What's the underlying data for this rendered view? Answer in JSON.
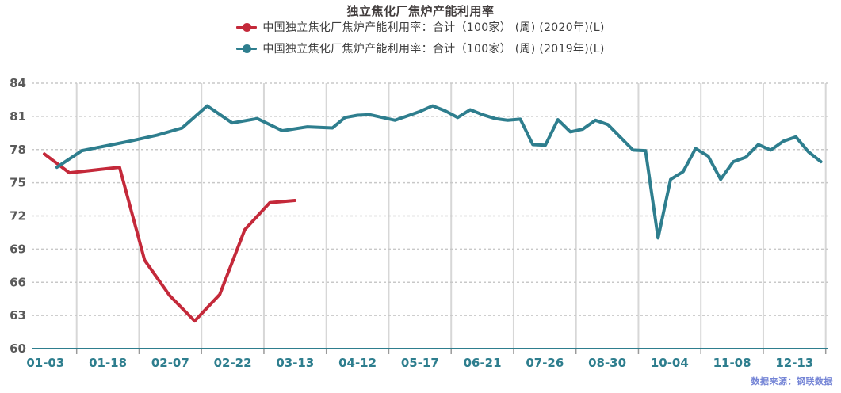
{
  "chart": {
    "title": "独立焦化厂焦炉产能利用率",
    "source_note": "数据来源：钢联数据",
    "legend": [
      {
        "label": "中国独立焦化厂焦炉产能利用率：合计（100家） (周) (2020年)(L)",
        "color": "#c4293a"
      },
      {
        "label": "中国独立焦化厂焦炉产能利用率：合计（100家） (周) (2019年)(L)",
        "color": "#2e7e8e"
      }
    ]
  },
  "chart_data": {
    "type": "line",
    "title": "独立焦化厂焦炉产能利用率",
    "ylim": [
      60,
      84
    ],
    "y_ticks": [
      60,
      63,
      66,
      69,
      72,
      75,
      78,
      81,
      84
    ],
    "x_labels": [
      "01-03",
      "01-18",
      "02-07",
      "02-22",
      "03-13",
      "04-12",
      "05-17",
      "06-21",
      "07-26",
      "08-30",
      "10-04",
      "11-08",
      "12-13"
    ],
    "grid": true,
    "legend_position": "top",
    "axis_color": "#2e7e8e",
    "x_label_color": "#2e7e8e",
    "y_label_color": "#5a5a5a",
    "series": [
      {
        "name": "中国独立焦化厂焦炉产能利用率：合计（100家） (周) (2020年)(L)",
        "color": "#c4293a",
        "points": [
          [
            56.0,
            77.6
          ],
          [
            87.6,
            75.9
          ],
          [
            119.2,
            76.15
          ],
          [
            150.8,
            76.4
          ],
          [
            182.4,
            68.0
          ],
          [
            214.0,
            64.8
          ],
          [
            245.6,
            62.5
          ],
          [
            277.2,
            64.9
          ],
          [
            308.8,
            70.75
          ],
          [
            340.4,
            73.2
          ],
          [
            372.0,
            73.4
          ]
        ]
      },
      {
        "name": "中国独立焦化厂焦炉产能利用率：合计（100家） (周) (2019年)(L)",
        "color": "#2e7e8e",
        "points": [
          [
            71.8,
            76.4
          ],
          [
            103.4,
            77.9
          ],
          [
            135.0,
            78.35
          ],
          [
            166.6,
            78.8
          ],
          [
            198.2,
            79.3
          ],
          [
            229.8,
            79.95
          ],
          [
            261.4,
            81.95
          ],
          [
            293.0,
            80.4
          ],
          [
            324.6,
            80.8
          ],
          [
            356.2,
            79.7
          ],
          [
            387.8,
            80.05
          ],
          [
            419.4,
            79.95
          ],
          [
            435.2,
            80.9
          ],
          [
            451.0,
            81.1
          ],
          [
            466.8,
            81.15
          ],
          [
            482.6,
            80.9
          ],
          [
            498.4,
            80.65
          ],
          [
            514.2,
            81.05
          ],
          [
            530.0,
            81.45
          ],
          [
            545.8,
            81.95
          ],
          [
            561.6,
            81.5
          ],
          [
            577.4,
            80.9
          ],
          [
            593.2,
            81.6
          ],
          [
            609.0,
            81.15
          ],
          [
            624.8,
            80.8
          ],
          [
            640.6,
            80.65
          ],
          [
            656.4,
            80.75
          ],
          [
            672.2,
            78.45
          ],
          [
            688.0,
            78.4
          ],
          [
            703.8,
            80.7
          ],
          [
            719.6,
            79.6
          ],
          [
            735.4,
            79.85
          ],
          [
            751.2,
            80.65
          ],
          [
            767.0,
            80.25
          ],
          [
            782.8,
            79.1
          ],
          [
            798.6,
            77.95
          ],
          [
            814.4,
            77.9
          ],
          [
            830.2,
            70.0
          ],
          [
            846.0,
            75.3
          ],
          [
            861.8,
            76.0
          ],
          [
            877.6,
            78.1
          ],
          [
            893.4,
            77.4
          ],
          [
            909.2,
            75.3
          ],
          [
            925.0,
            76.9
          ],
          [
            940.8,
            77.3
          ],
          [
            956.6,
            78.45
          ],
          [
            972.4,
            77.95
          ],
          [
            988.2,
            78.75
          ],
          [
            1004.0,
            79.15
          ],
          [
            1019.8,
            77.8
          ],
          [
            1035.6,
            76.9
          ]
        ]
      }
    ]
  }
}
